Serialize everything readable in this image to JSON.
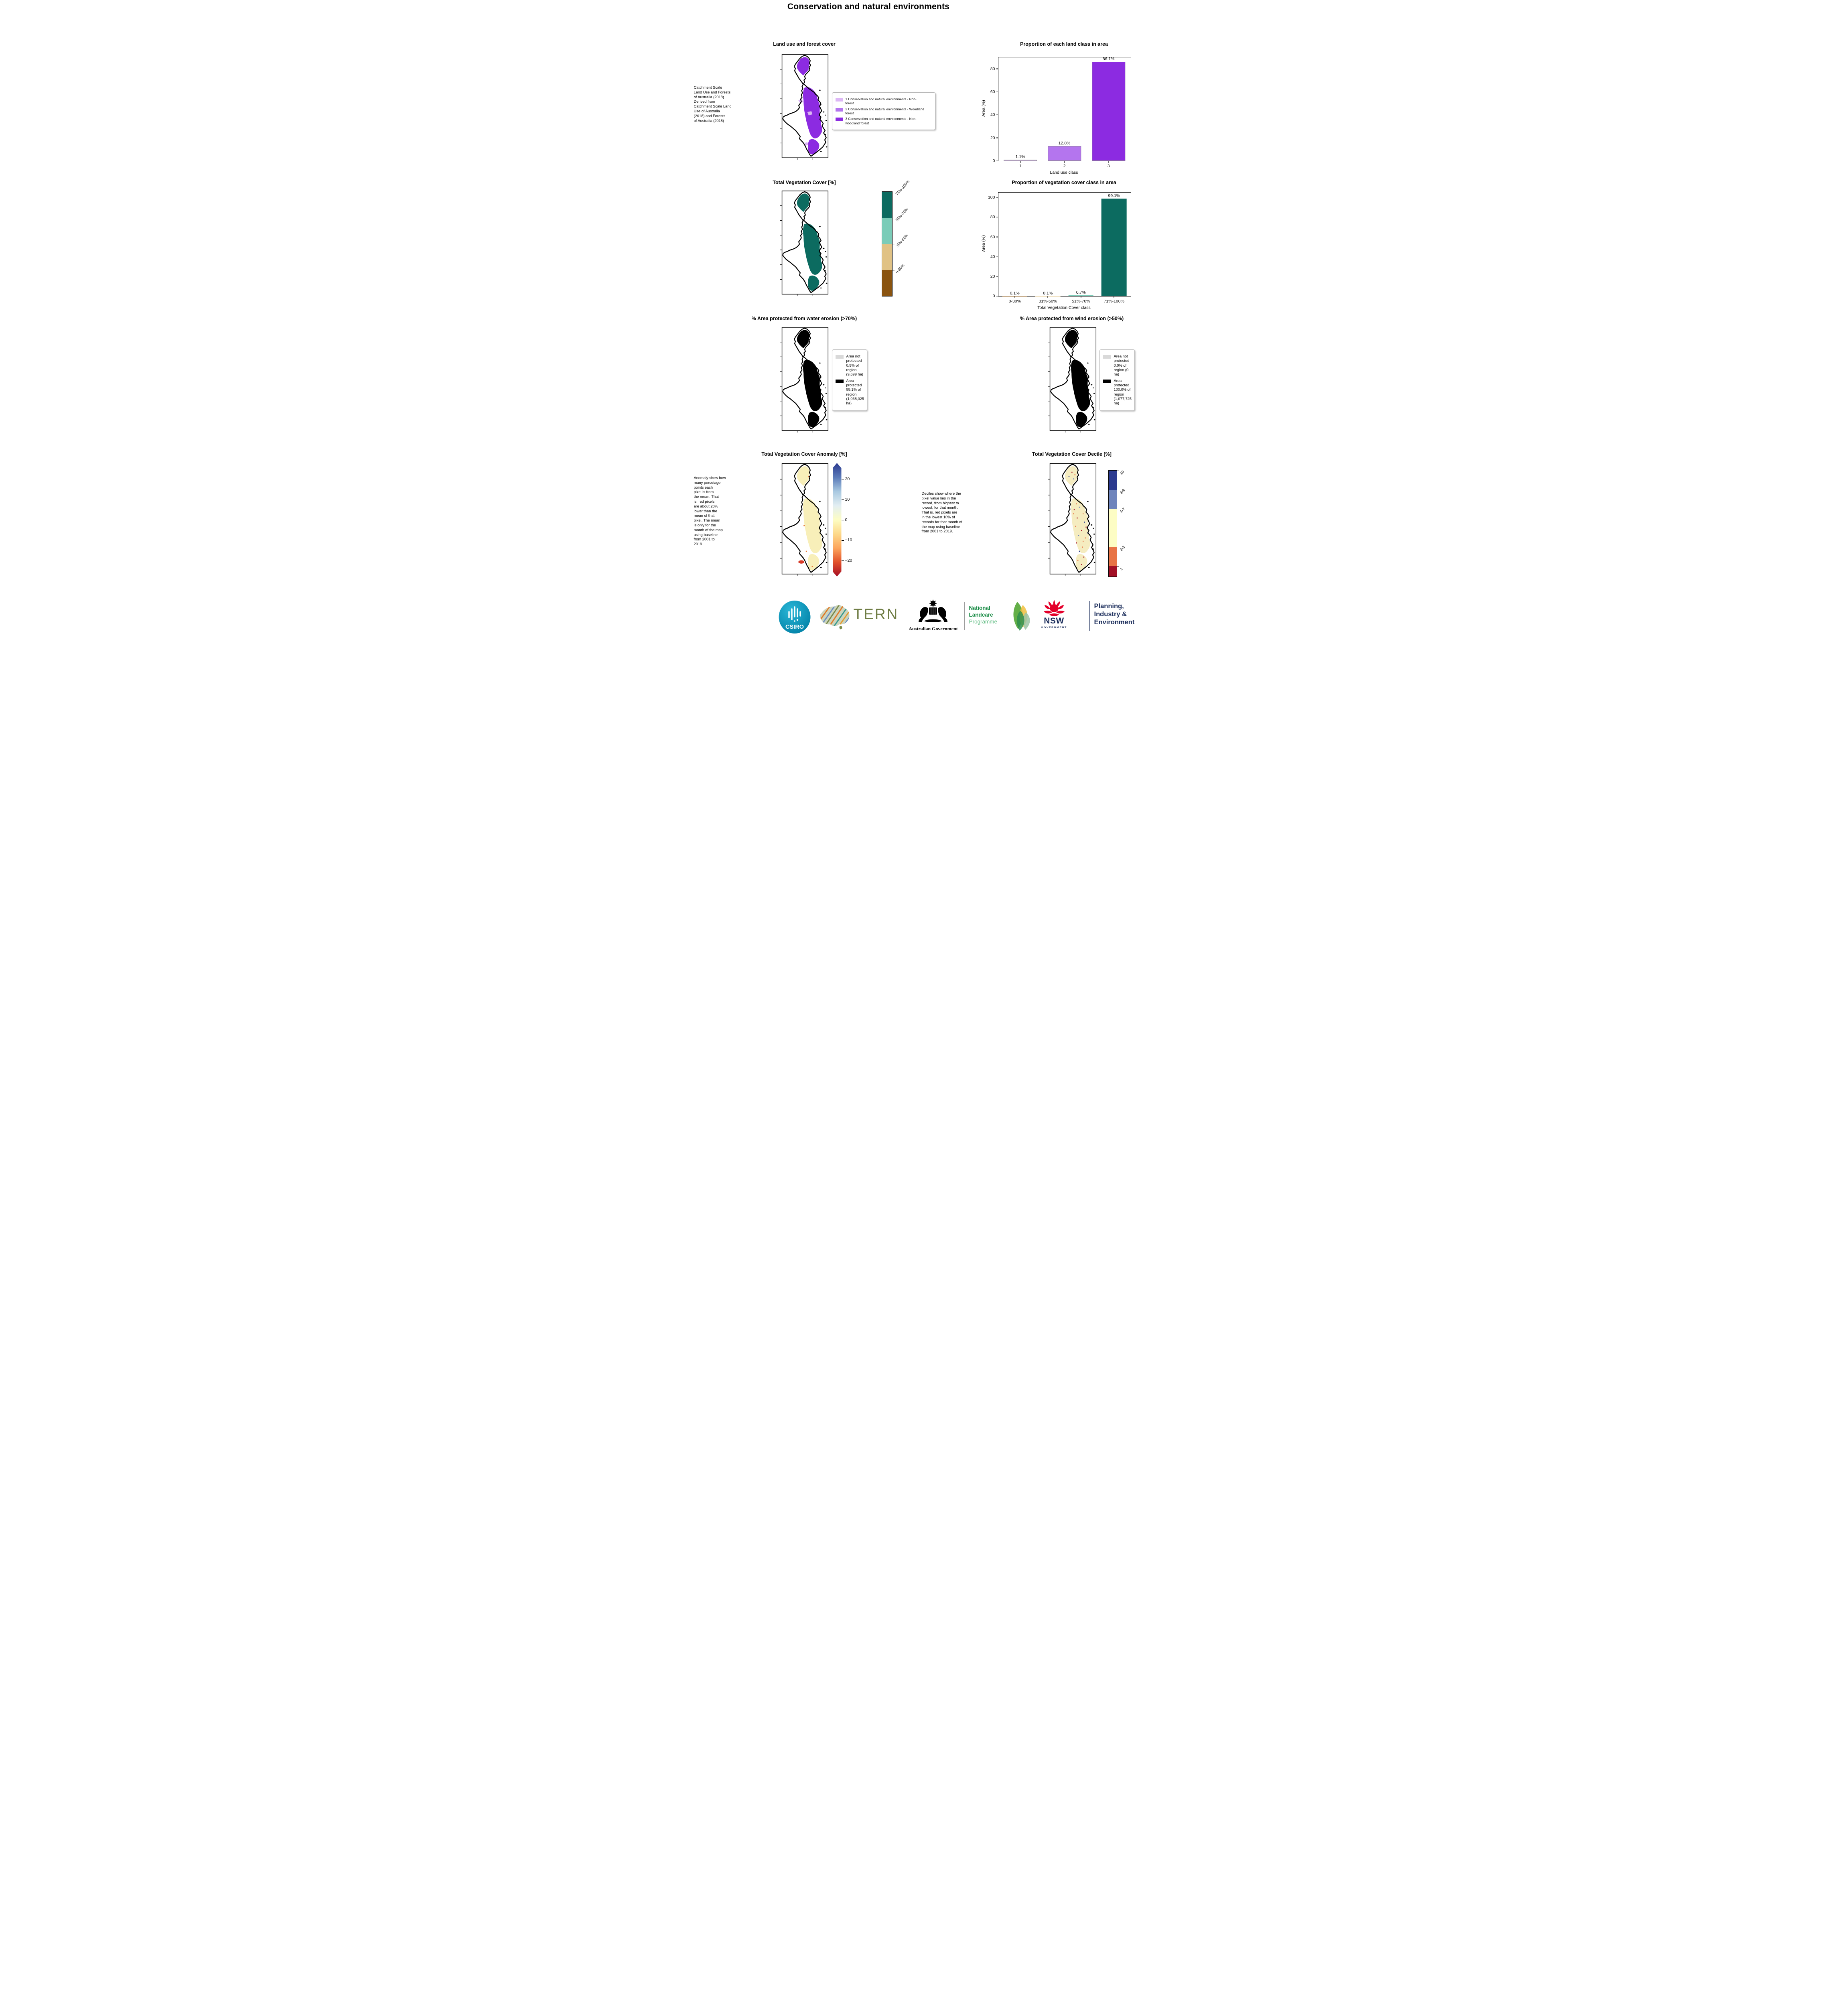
{
  "page": {
    "title": "Conservation and natural environments"
  },
  "row1": {
    "left": {
      "title": "Land use and forest cover",
      "side_note": " Catchment Scale\nLand Use and Forests\nof Australia (2018)\nDerived from\nCatchment Scale Land\nUse of Australia\n(2018) and Forests\nof Australia (2018)",
      "legend": [
        {
          "label": "1 Conservation and natural environments - Non-\nforest",
          "color": "#ddb7f6"
        },
        {
          "label": "2 Conservation and natural environments - Woodland\nforest",
          "color": "#b475ee"
        },
        {
          "label": "3 Conservation and natural environments - Non-\nwoodland forest",
          "color": "#8c2be1"
        }
      ]
    }
  },
  "row2": {
    "left": {
      "title": "Total Vegetation Cover [%]"
    },
    "veg_colorbar": {
      "segments": [
        {
          "label": "71%-100%",
          "color": "#0c6b60"
        },
        {
          "label": "51%-70%",
          "color": "#7bccb8"
        },
        {
          "label": "31%-50%",
          "color": "#e0c285"
        },
        {
          "label": "0-30%",
          "color": "#8a5410"
        }
      ]
    }
  },
  "row3": {
    "water": {
      "title": "% Area protected from water erosion (>70%)",
      "legend": [
        {
          "label": "Area not\nprotected\n0.9% of\nregion\n(9,699 ha)",
          "color": "#d9d9d9"
        },
        {
          "label": "Area\nprotected\n99.1% of\nregion\n(1,068,025\nha)",
          "color": "#000000"
        }
      ]
    },
    "wind": {
      "title": "% Area protected from wind erosion (>50%)",
      "legend": [
        {
          "label": "Area not\nprotected\n0.0% of\nregion (0\nha)",
          "color": "#d9d9d9"
        },
        {
          "label": "Area\nprotected\n100.0% of\nregion\n(1,077,725\nha)",
          "color": "#000000"
        }
      ]
    }
  },
  "row4": {
    "anomaly": {
      "title": "Total Vegetation Cover Anomaly [%]",
      "note": "Anomaly show how\nmany percetage\npoints each\npixel is from\nthe mean. That\nis, red pixels\nare about 20%\nlower than the\nmean of that\npixel. The mean\nis only for the\nmonth of the map\nusing baseline\nfrom 2001 to\n2019.",
      "cbar_ticks": [
        "20",
        "10",
        "0",
        "−10",
        "−20"
      ],
      "gradient": [
        "#2b3a8f",
        "#5a7ab8",
        "#a8c8e0",
        "#e2eef2",
        "#fdfdc4",
        "#fdd98a",
        "#fca55d",
        "#e1502a",
        "#a50e26"
      ]
    },
    "decile": {
      "title": "Total Vegetation Cover Decile [%]",
      "note": "Deciles show where the\npixel value lies in the\nrecord, from highest to\nlowest, for that month.\nThat is, red pixels are\nin the lowest 10% of\nrecords for that month of\nthe map using baseline\nfrom 2001 to 2019.",
      "cbar": {
        "labels": [
          "10",
          "8-9",
          "4-7",
          "2-3",
          "1"
        ],
        "colors": [
          "#2b3a8f",
          "#6e84bc",
          "#fdfdc4",
          "#e87345",
          "#a31026"
        ],
        "sizes": [
          18,
          18,
          36,
          18,
          10
        ],
        "tick_pos": [
          0,
          18,
          36,
          72,
          90
        ]
      }
    }
  },
  "chart_data": [
    {
      "type": "bar",
      "title": "Proportion of each land class in area",
      "categories": [
        "1",
        "2",
        "3"
      ],
      "values": [
        1.1,
        12.8,
        86.1
      ],
      "value_labels": [
        "1.1%",
        "12.8%",
        "86.1%"
      ],
      "xlabel": "Land use class",
      "ylabel": "Area (%)",
      "ylim": [
        0,
        90
      ],
      "yticks": [
        0,
        20,
        40,
        60,
        80
      ],
      "bar_colors": [
        "#ddb7f6",
        "#b475ee",
        "#8c2be1"
      ],
      "bar_edge": "#8a8a8a",
      "grid": false,
      "legend": "none"
    },
    {
      "type": "bar",
      "title": "Proportion of vegetation cover class in area",
      "categories": [
        "0-30%",
        "31%-50%",
        "51%-70%",
        "71%-100%"
      ],
      "values": [
        0.1,
        0.1,
        0.7,
        99.1
      ],
      "value_labels": [
        "0.1%",
        "0.1%",
        "0.7%",
        "99.1%"
      ],
      "xlabel": "Total Vegetation Cover class",
      "ylabel": "Area (%)",
      "ylim": [
        0,
        105
      ],
      "yticks": [
        0,
        20,
        40,
        60,
        80,
        100
      ],
      "bar_colors": [
        "#8a5410",
        "#e0c285",
        "#7bccb8",
        "#0c6b60"
      ],
      "bar_edge": null,
      "grid": false,
      "legend": "none"
    }
  ],
  "logos": {
    "csiro": "CSIRO",
    "tern": "TERN",
    "aus_gov": "Australian Government",
    "landcare": [
      "National",
      "Landcare",
      "Programme"
    ],
    "nsw": "NSW",
    "nsw_sub": "GOVERNMENT",
    "planning": [
      "Planning,",
      "Industry &",
      "Environment"
    ],
    "colors": {
      "csiro_teal": "#00a0c6",
      "tern_olive": "#6f7d45",
      "landcare_green": "#168a43",
      "landcare_light": "#63bd85",
      "nsw_navy": "#1b2d5b",
      "waratah_red": "#e4002b"
    }
  }
}
